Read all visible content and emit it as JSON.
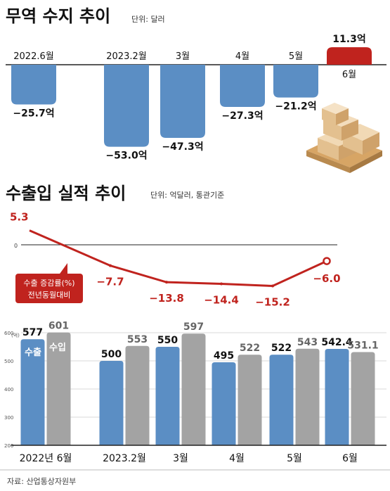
{
  "trade_balance": {
    "title": "무역 수지 추이",
    "unit": "단위: 달러",
    "chart_data": {
      "type": "bar",
      "title": "무역 수지 추이",
      "unit": "단위: 달러",
      "categories": [
        "2022.6월",
        "2023.2월",
        "3월",
        "4월",
        "5월",
        "6월"
      ],
      "values": [
        -25.7,
        -53.0,
        -47.3,
        -27.3,
        -21.2,
        11.3
      ],
      "value_labels": [
        "−25.7억",
        "−53.0억",
        "−47.3억",
        "−27.3억",
        "−21.2억",
        "11.3억"
      ],
      "colors": {
        "negative": "#5b8ec4",
        "positive": "#c0231e"
      }
    }
  },
  "export_growth": {
    "title": "수출입 실적 추이",
    "unit": "단위: 억달러, 통관기준",
    "zero_label": "0",
    "legend_line1": "수출 증감률(%)",
    "legend_line2": "전년동월대비",
    "chart_data": {
      "type": "line",
      "series": [
        {
          "name": "수출 증감률(%) 전년동월대비",
          "values": [
            5.3,
            -7.7,
            -13.8,
            -14.4,
            -15.2,
            -6.0
          ]
        }
      ],
      "value_labels": [
        "5.3",
        "−7.7",
        "−13.8",
        "−14.4",
        "−15.2",
        "−6.0"
      ],
      "color": "#c0231e"
    }
  },
  "trade_volume": {
    "ylabel": "(억)",
    "legend_export": "수출",
    "legend_import": "수입",
    "source": "자료: 산업통상자원부",
    "chart_data": {
      "type": "bar",
      "categories": [
        "2022년 6월",
        "2023.2월",
        "3월",
        "4월",
        "5월",
        "6월"
      ],
      "series": [
        {
          "name": "수출",
          "values": [
            577,
            500,
            550,
            495,
            522,
            542.4
          ],
          "labels": [
            "577",
            "500",
            "550",
            "495",
            "522",
            "542.4"
          ],
          "color": "#5b8ec4"
        },
        {
          "name": "수입",
          "values": [
            601,
            553,
            597,
            522,
            543,
            531.1
          ],
          "labels": [
            "601",
            "553",
            "597",
            "522",
            "543",
            "531.1"
          ],
          "color": "#a3a3a3"
        }
      ],
      "yticks": [
        600,
        500,
        400,
        300,
        200
      ],
      "ylim": [
        200,
        600
      ]
    }
  }
}
